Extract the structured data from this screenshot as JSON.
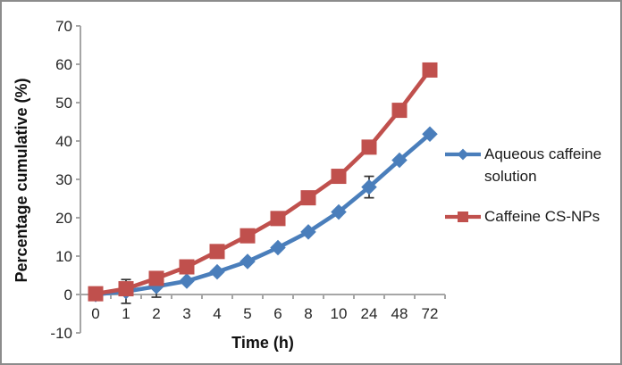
{
  "chart_data": {
    "type": "line",
    "title": "",
    "xlabel": "Time (h)",
    "ylabel": "Percentage cumulative (%)",
    "categories": [
      "0",
      "1",
      "2",
      "3",
      "4",
      "5",
      "6",
      "8",
      "10",
      "24",
      "48",
      "72"
    ],
    "ylim": [
      -10,
      70
    ],
    "yticks": [
      -10,
      0,
      10,
      20,
      30,
      40,
      50,
      60,
      70
    ],
    "grid": false,
    "legend_position": "right",
    "axis_color": "#A6A6A6",
    "tick_label_color": "#262626",
    "error_bar_color": "#333333",
    "series": [
      {
        "name": "Aqueous caffeine solution",
        "color": "#4A7EBB",
        "marker": "diamond",
        "values": [
          0,
          0.8,
          2.1,
          3.5,
          5.9,
          8.6,
          12.2,
          16.3,
          21.5,
          28,
          35,
          41.8
        ],
        "error": [
          null,
          3.1,
          2.8,
          null,
          null,
          null,
          null,
          null,
          null,
          2.8,
          null,
          null
        ]
      },
      {
        "name": "Caffeine CS-NPs",
        "color": "#C0504D",
        "marker": "square",
        "values": [
          0.2,
          1.5,
          4.2,
          7.2,
          11.2,
          15.3,
          19.8,
          25.2,
          30.8,
          38.4,
          48,
          58.5
        ],
        "error": [
          null,
          null,
          null,
          null,
          null,
          null,
          null,
          null,
          null,
          null,
          null,
          null
        ]
      }
    ]
  }
}
